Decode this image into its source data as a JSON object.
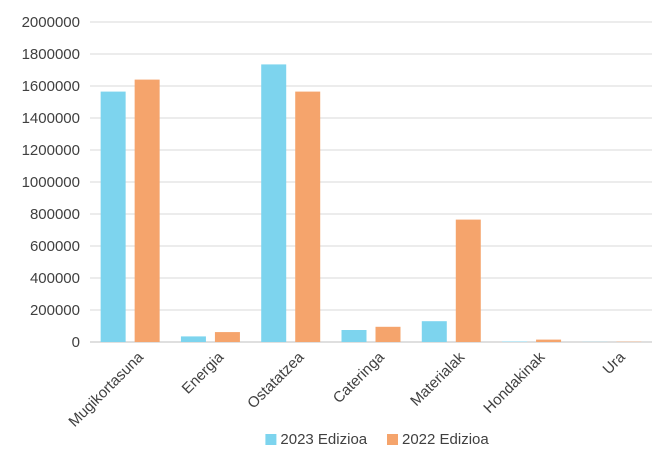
{
  "chart_data": {
    "type": "bar",
    "title": "",
    "xlabel": "",
    "ylabel": "",
    "ylim": [
      0,
      2000000
    ],
    "yticks": [
      0,
      200000,
      400000,
      600000,
      800000,
      1000000,
      1200000,
      1400000,
      1600000,
      1800000,
      2000000
    ],
    "grid": true,
    "legend_position": "bottom",
    "categories": [
      "Mugikortasuna",
      "Energia",
      "Ostatatzea",
      "Cateringa",
      "Materialak",
      "Hondakinak",
      "Ura"
    ],
    "series": [
      {
        "name": "2023 Edizioa",
        "color": "#7dd4ee",
        "values": [
          1565000,
          35000,
          1735000,
          75000,
          130000,
          3000,
          1000
        ]
      },
      {
        "name": "2022 Edizioa",
        "color": "#f5a46c",
        "values": [
          1640000,
          62000,
          1565000,
          95000,
          765000,
          15000,
          2000
        ]
      }
    ]
  }
}
